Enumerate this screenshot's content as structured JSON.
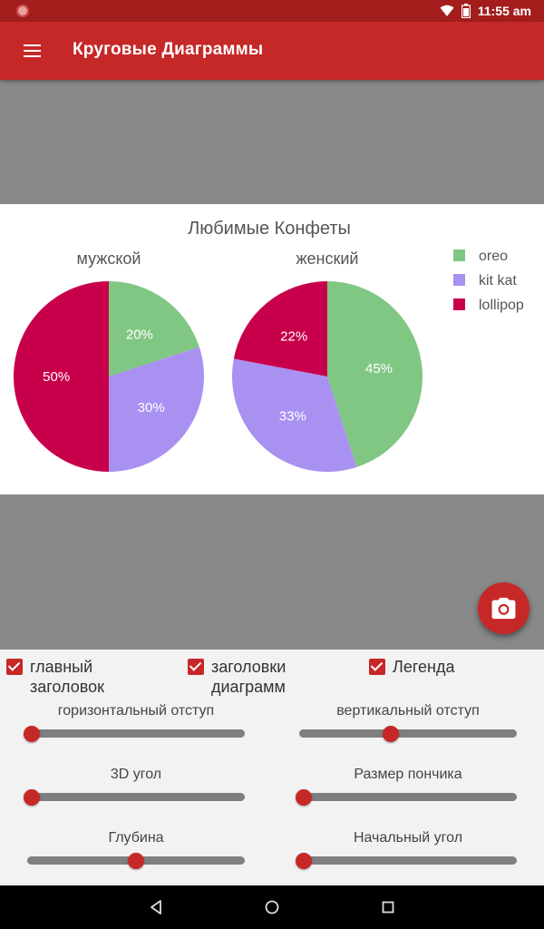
{
  "status_bar": {
    "time": "11:55 am"
  },
  "app_bar": {
    "title": "Круговые Диаграммы"
  },
  "chart": {
    "title": "Любимые Конфеты",
    "pies": [
      {
        "name": "мужской"
      },
      {
        "name": "женский"
      }
    ],
    "legend": [
      {
        "name": "oreo",
        "color": "#81c784"
      },
      {
        "name": "kit kat",
        "color": "#a991f2"
      },
      {
        "name": "lollipop",
        "color": "#c8004b"
      }
    ]
  },
  "chart_data": {
    "type": "pie",
    "title": "Любимые Конфеты",
    "categories": [
      "oreo",
      "kit kat",
      "lollipop"
    ],
    "colors": [
      "#81c784",
      "#a991f2",
      "#c8004b"
    ],
    "legend_position": "right",
    "series": [
      {
        "name": "мужской",
        "values": [
          20,
          30,
          50
        ],
        "labels": [
          "20%",
          "30%",
          "50%"
        ]
      },
      {
        "name": "женский",
        "values": [
          45,
          33,
          22
        ],
        "labels": [
          "45%",
          "33%",
          "22%"
        ]
      }
    ]
  },
  "controls": {
    "checkboxes": [
      {
        "label": "главный заголовок",
        "checked": true
      },
      {
        "label": "заголовки диаграмм",
        "checked": true
      },
      {
        "label": "Легенда",
        "checked": true
      }
    ],
    "sliders": [
      {
        "label": "горизонтальный отступ",
        "value": 0.02
      },
      {
        "label": "вертикальный отступ",
        "value": 0.42
      },
      {
        "label": "3D угол",
        "value": 0.02
      },
      {
        "label": "Размер пончика",
        "value": 0.02
      },
      {
        "label": "Глубина",
        "value": 0.5
      },
      {
        "label": "Начальный угол",
        "value": 0.02
      }
    ]
  },
  "icons": {
    "menu": "menu-icon",
    "camera": "camera-icon",
    "back": "back-icon",
    "home": "home-icon",
    "recents": "recents-icon"
  }
}
